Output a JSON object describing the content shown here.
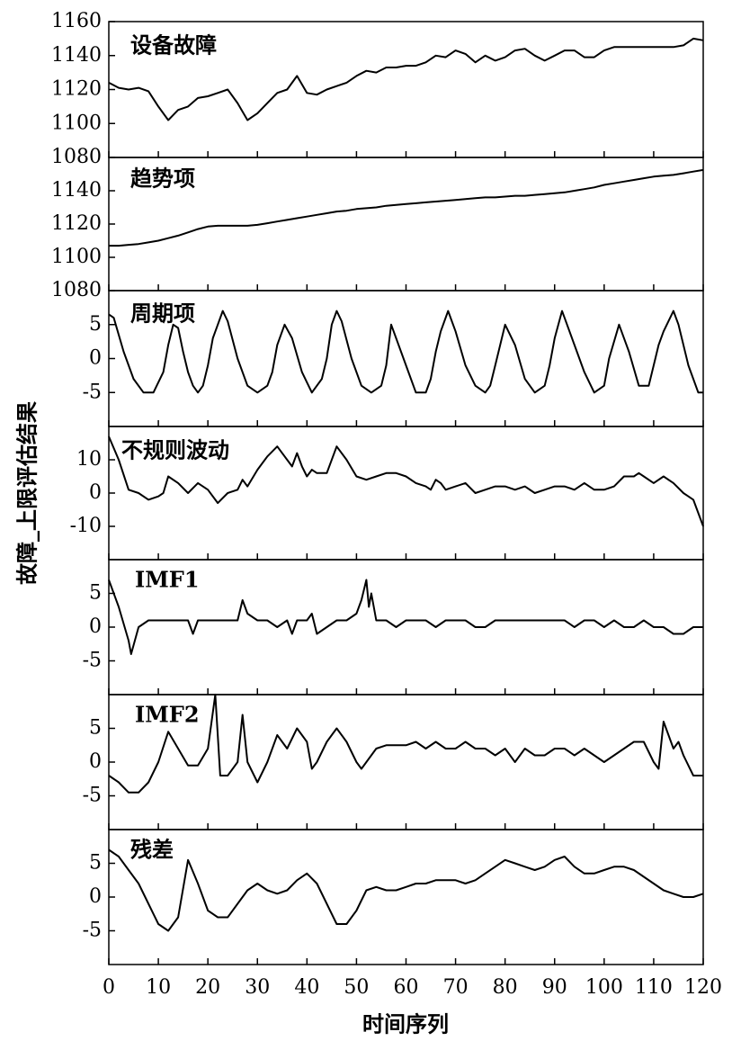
{
  "chart_data": [
    {
      "type": "line",
      "label": "设备故障",
      "ylabel": "故障_上限评估结果",
      "color": "#000000",
      "xlim": [
        0,
        120
      ],
      "ylim": [
        1080,
        1160
      ],
      "yticks": [
        1080,
        1100,
        1120,
        1140,
        1160
      ],
      "x": [
        0,
        2,
        4,
        6,
        8,
        10,
        12,
        14,
        16,
        18,
        20,
        22,
        24,
        26,
        28,
        30,
        32,
        34,
        36,
        38,
        40,
        42,
        44,
        46,
        48,
        50,
        52,
        54,
        56,
        58,
        60,
        62,
        64,
        66,
        68,
        70,
        72,
        74,
        76,
        78,
        80,
        82,
        84,
        86,
        88,
        90,
        92,
        94,
        96,
        98,
        100,
        102,
        104,
        106,
        108,
        110,
        112,
        114,
        116,
        118,
        120
      ],
      "values": [
        1124,
        1121,
        1120,
        1121,
        1119,
        1110,
        1102,
        1108,
        1110,
        1115,
        1116,
        1118,
        1120,
        1112,
        1102,
        1106,
        1112,
        1118,
        1120,
        1128,
        1118,
        1117,
        1120,
        1122,
        1124,
        1128,
        1131,
        1130,
        1133,
        1133,
        1134,
        1134,
        1136,
        1140,
        1139,
        1143,
        1141,
        1136,
        1140,
        1137,
        1139,
        1143,
        1144,
        1140,
        1137,
        1140,
        1143,
        1143,
        1139,
        1139,
        1143,
        1145,
        1145,
        1145,
        1145,
        1145,
        1145,
        1145,
        1146,
        1150,
        1149
      ]
    },
    {
      "type": "line",
      "label": "趋势项",
      "color": "#000000",
      "xlim": [
        0,
        120
      ],
      "ylim": [
        1080,
        1160
      ],
      "yticks": [
        1080,
        1100,
        1120,
        1140
      ],
      "x": [
        0,
        2,
        4,
        6,
        8,
        10,
        12,
        14,
        16,
        18,
        20,
        22,
        24,
        26,
        28,
        30,
        32,
        34,
        36,
        38,
        40,
        42,
        44,
        46,
        48,
        50,
        52,
        54,
        56,
        58,
        60,
        62,
        64,
        66,
        68,
        70,
        72,
        74,
        76,
        78,
        80,
        82,
        84,
        86,
        88,
        90,
        92,
        94,
        96,
        98,
        100,
        102,
        104,
        106,
        108,
        110,
        112,
        114,
        116,
        118,
        120
      ],
      "values": [
        1107,
        1107,
        1107.5,
        1108,
        1109,
        1110,
        1111.5,
        1113,
        1115,
        1117,
        1118.5,
        1119,
        1119,
        1119,
        1119,
        1119.5,
        1120.5,
        1121.5,
        1122.5,
        1123.5,
        1124.5,
        1125.5,
        1126.5,
        1127.5,
        1128,
        1129,
        1129.5,
        1130,
        1131,
        1131.5,
        1132,
        1132.5,
        1133,
        1133.5,
        1134,
        1134.5,
        1135,
        1135.5,
        1136,
        1136,
        1136.5,
        1137,
        1137,
        1137.5,
        1138,
        1138.5,
        1139,
        1140,
        1141,
        1142,
        1143.5,
        1144.5,
        1145.5,
        1146.5,
        1147.5,
        1148.5,
        1149,
        1149.5,
        1150.5,
        1151.5,
        1152.5
      ]
    },
    {
      "type": "line",
      "label": "周期项",
      "color": "#000000",
      "xlim": [
        0,
        120
      ],
      "ylim": [
        -10,
        10
      ],
      "yticks": [
        -5,
        0,
        5
      ],
      "x": [
        0,
        1,
        3,
        5,
        7,
        9,
        11,
        12,
        13,
        14,
        15,
        16,
        17,
        18,
        19,
        20,
        21,
        22,
        23,
        24,
        26,
        28,
        30,
        32,
        33,
        34,
        35.5,
        37,
        39,
        41,
        43,
        44,
        45,
        46,
        47,
        49,
        51,
        53,
        55,
        56,
        57,
        58,
        60,
        62,
        64,
        65,
        66,
        67,
        68.5,
        70,
        72,
        74,
        76,
        77,
        78,
        80,
        82,
        84,
        86,
        88,
        89,
        90,
        91.5,
        92,
        94,
        96,
        98,
        100,
        101,
        103,
        105,
        107,
        109,
        110,
        111,
        112,
        114,
        115,
        117,
        119,
        120
      ],
      "values": [
        6.5,
        6,
        1,
        -3,
        -5,
        -5,
        -2,
        2,
        5,
        4.5,
        1,
        -2,
        -4,
        -5,
        -4,
        -1,
        3,
        5,
        7,
        5.5,
        0,
        -4,
        -5,
        -4,
        -2,
        2,
        5,
        3,
        -2,
        -5,
        -3,
        0,
        5,
        7,
        5.5,
        0,
        -4,
        -5,
        -4,
        -1,
        5,
        3,
        -1,
        -5,
        -5,
        -3,
        1,
        4,
        7,
        4,
        -1,
        -4,
        -5,
        -4,
        -1,
        5,
        2,
        -3,
        -5,
        -4,
        -1,
        3,
        7,
        6,
        2,
        -2,
        -5,
        -4,
        0,
        5,
        1,
        -4,
        -4,
        -1,
        2,
        4,
        7,
        5,
        -1,
        -5,
        -5
      ]
    },
    {
      "type": "line",
      "label": "不规则波动",
      "color": "#000000",
      "xlim": [
        0,
        120
      ],
      "ylim": [
        -20,
        20
      ],
      "yticks": [
        -10,
        0,
        10
      ],
      "x": [
        0,
        2,
        4,
        6,
        8,
        10,
        11,
        12,
        14,
        16,
        18,
        20,
        22,
        24,
        26,
        27,
        28,
        30,
        32,
        34,
        36,
        37,
        38,
        39,
        40,
        41,
        42,
        44,
        46,
        48,
        50,
        52,
        54,
        56,
        58,
        60,
        62,
        64,
        65,
        66,
        67,
        68,
        70,
        72,
        74,
        76,
        78,
        80,
        82,
        84,
        86,
        88,
        90,
        92,
        94,
        96,
        98,
        100,
        102,
        104,
        106,
        107,
        108,
        110,
        112,
        114,
        116,
        118,
        120
      ],
      "values": [
        17,
        10,
        1,
        0,
        -2,
        -1,
        0,
        5,
        3,
        0,
        3,
        1,
        -3,
        0,
        1,
        4,
        2,
        7,
        11,
        14,
        10,
        8,
        12,
        8,
        5,
        7,
        6,
        6,
        14,
        10,
        5,
        4,
        5,
        6,
        6,
        5,
        3,
        2,
        1,
        4,
        3,
        1,
        2,
        3,
        0,
        1,
        2,
        2,
        1,
        2,
        0,
        1,
        2,
        2,
        1,
        3,
        1,
        1,
        2,
        5,
        5,
        6,
        5,
        3,
        5,
        3,
        0,
        -2,
        -10
      ]
    },
    {
      "type": "line",
      "label": "IMF1",
      "color": "#000000",
      "xlim": [
        0,
        120
      ],
      "ylim": [
        -10,
        10
      ],
      "yticks": [
        -5,
        0,
        5
      ],
      "x": [
        0,
        2,
        4,
        4.5,
        6,
        8,
        10,
        12,
        14,
        16,
        17,
        18,
        20,
        22,
        24,
        26,
        27,
        28,
        30,
        32,
        34,
        36,
        37,
        38,
        40,
        41,
        42,
        44,
        46,
        48,
        50,
        51,
        52,
        52.5,
        53,
        54,
        56,
        58,
        60,
        62,
        64,
        66,
        68,
        70,
        72,
        74,
        76,
        78,
        80,
        82,
        84,
        86,
        88,
        90,
        92,
        94,
        96,
        98,
        100,
        102,
        104,
        106,
        108,
        110,
        112,
        114,
        116,
        118,
        120
      ],
      "values": [
        7,
        3,
        -2,
        -4,
        0,
        1,
        1,
        1,
        1,
        1,
        -1,
        1,
        1,
        1,
        1,
        1,
        4,
        2,
        1,
        1,
        0,
        1,
        -1,
        1,
        1,
        2,
        -1,
        0,
        1,
        1,
        2,
        4,
        7,
        3,
        5,
        1,
        1,
        0,
        1,
        1,
        1,
        0,
        1,
        1,
        1,
        0,
        0,
        1,
        1,
        1,
        1,
        1,
        1,
        1,
        1,
        0,
        1,
        1,
        0,
        1,
        0,
        0,
        1,
        0,
        0,
        -1,
        -1,
        0,
        0
      ]
    },
    {
      "type": "line",
      "label": "IMF2",
      "color": "#000000",
      "xlim": [
        0,
        120
      ],
      "ylim": [
        -10,
        10
      ],
      "yticks": [
        -5,
        0,
        5
      ],
      "x": [
        0,
        2,
        4,
        6,
        8,
        10,
        12,
        14,
        16,
        18,
        20,
        21.5,
        22.5,
        24,
        26,
        27,
        28,
        30,
        32,
        34,
        36,
        38,
        40,
        41,
        42,
        44,
        46,
        48,
        50,
        51,
        52,
        54,
        56,
        58,
        60,
        62,
        64,
        66,
        68,
        70,
        72,
        74,
        76,
        78,
        80,
        82,
        84,
        86,
        88,
        90,
        92,
        94,
        96,
        98,
        100,
        102,
        104,
        106,
        108,
        110,
        111,
        112,
        113,
        114,
        115,
        116,
        118,
        120
      ],
      "values": [
        -2,
        -3,
        -4.5,
        -4.5,
        -3,
        0,
        4.5,
        2,
        -0.5,
        -0.5,
        2,
        10,
        -2,
        -2,
        0,
        7,
        0,
        -3,
        0,
        4,
        2,
        5,
        3,
        -1,
        0,
        3,
        5,
        3,
        0,
        -1,
        0,
        2,
        2.5,
        2.5,
        2.5,
        3,
        2,
        3,
        2,
        2,
        3,
        2,
        2,
        1,
        2,
        0,
        2,
        1,
        1,
        2,
        2,
        1,
        2,
        1,
        0,
        1,
        2,
        3,
        3,
        0,
        -1,
        6,
        4,
        2,
        3,
        1,
        -2,
        -2
      ]
    },
    {
      "type": "line",
      "label": "残差",
      "xlabel": "时间序列",
      "color": "#000000",
      "xlim": [
        0,
        120
      ],
      "xticks": [
        0,
        10,
        20,
        30,
        40,
        50,
        60,
        70,
        80,
        90,
        100,
        110,
        120
      ],
      "ylim": [
        -10,
        10
      ],
      "yticks": [
        -5,
        0,
        5
      ],
      "x": [
        0,
        2,
        4,
        6,
        8,
        10,
        12,
        14,
        16,
        18,
        20,
        22,
        24,
        26,
        28,
        30,
        32,
        34,
        36,
        38,
        40,
        42,
        44,
        46,
        48,
        50,
        52,
        54,
        56,
        58,
        60,
        62,
        64,
        66,
        68,
        70,
        72,
        74,
        76,
        78,
        80,
        82,
        84,
        86,
        88,
        90,
        92,
        94,
        96,
        98,
        100,
        102,
        104,
        106,
        108,
        110,
        112,
        114,
        116,
        118,
        120
      ],
      "values": [
        7,
        6,
        4,
        2,
        -1,
        -4,
        -5,
        -3,
        5.5,
        2,
        -2,
        -3,
        -3,
        -1,
        1,
        2,
        1,
        0.5,
        1,
        2.5,
        3.5,
        2,
        -1,
        -4,
        -4,
        -2,
        1,
        1.5,
        1,
        1,
        1.5,
        2,
        2,
        2.5,
        2.5,
        2.5,
        2,
        2.5,
        3.5,
        4.5,
        5.5,
        5,
        4.5,
        4,
        4.5,
        5.5,
        6,
        4.5,
        3.5,
        3.5,
        4,
        4.5,
        4.5,
        4,
        3,
        2,
        1,
        0.5,
        0,
        0,
        0.5
      ]
    }
  ]
}
